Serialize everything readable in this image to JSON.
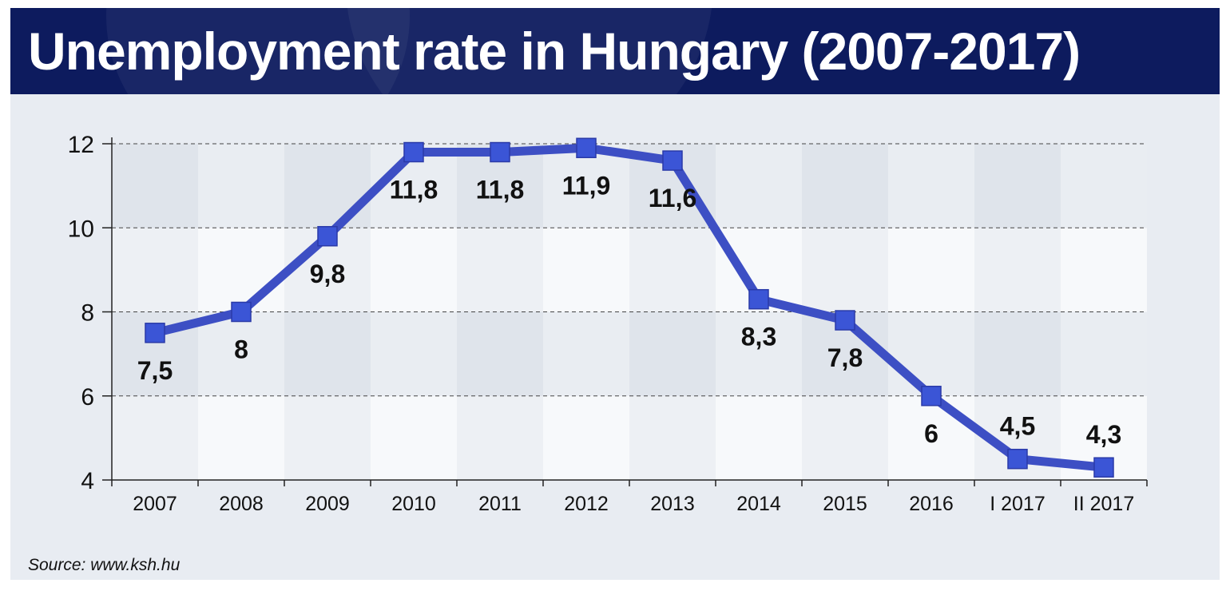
{
  "header": {
    "title": "Unemployment rate in Hungary (2007-2017)"
  },
  "footer": {
    "source": "Source: www.ksh.hu"
  },
  "colors": {
    "header_bg": "#0d1b5e",
    "line": "#3d4fc4",
    "marker": "#3b55d6",
    "band_dark": "#e3e8ee",
    "band_light": "#f6f8fa"
  },
  "chart_data": {
    "type": "line",
    "title": "Unemployment rate in Hungary (2007-2017)",
    "xlabel": "",
    "ylabel": "",
    "categories": [
      "2007",
      "2008",
      "2009",
      "2010",
      "2011",
      "2012",
      "2013",
      "2014",
      "2015",
      "2016",
      "I 2017",
      "II 2017"
    ],
    "series": [
      {
        "values": [
          7.5,
          8,
          9.8,
          11.8,
          11.8,
          11.9,
          11.6,
          8.3,
          7.8,
          6,
          4.5,
          4.3
        ],
        "labels": [
          "7,5",
          "8",
          "9,8",
          "11,8",
          "11,8",
          "11,9",
          "11,6",
          "8,3",
          "7,8",
          "6",
          "4,5",
          "4,3"
        ]
      }
    ],
    "ylim": [
      4,
      12
    ],
    "yticks": [
      "4",
      "6",
      "8",
      "10",
      "12"
    ],
    "grid": true,
    "legend": "none"
  }
}
